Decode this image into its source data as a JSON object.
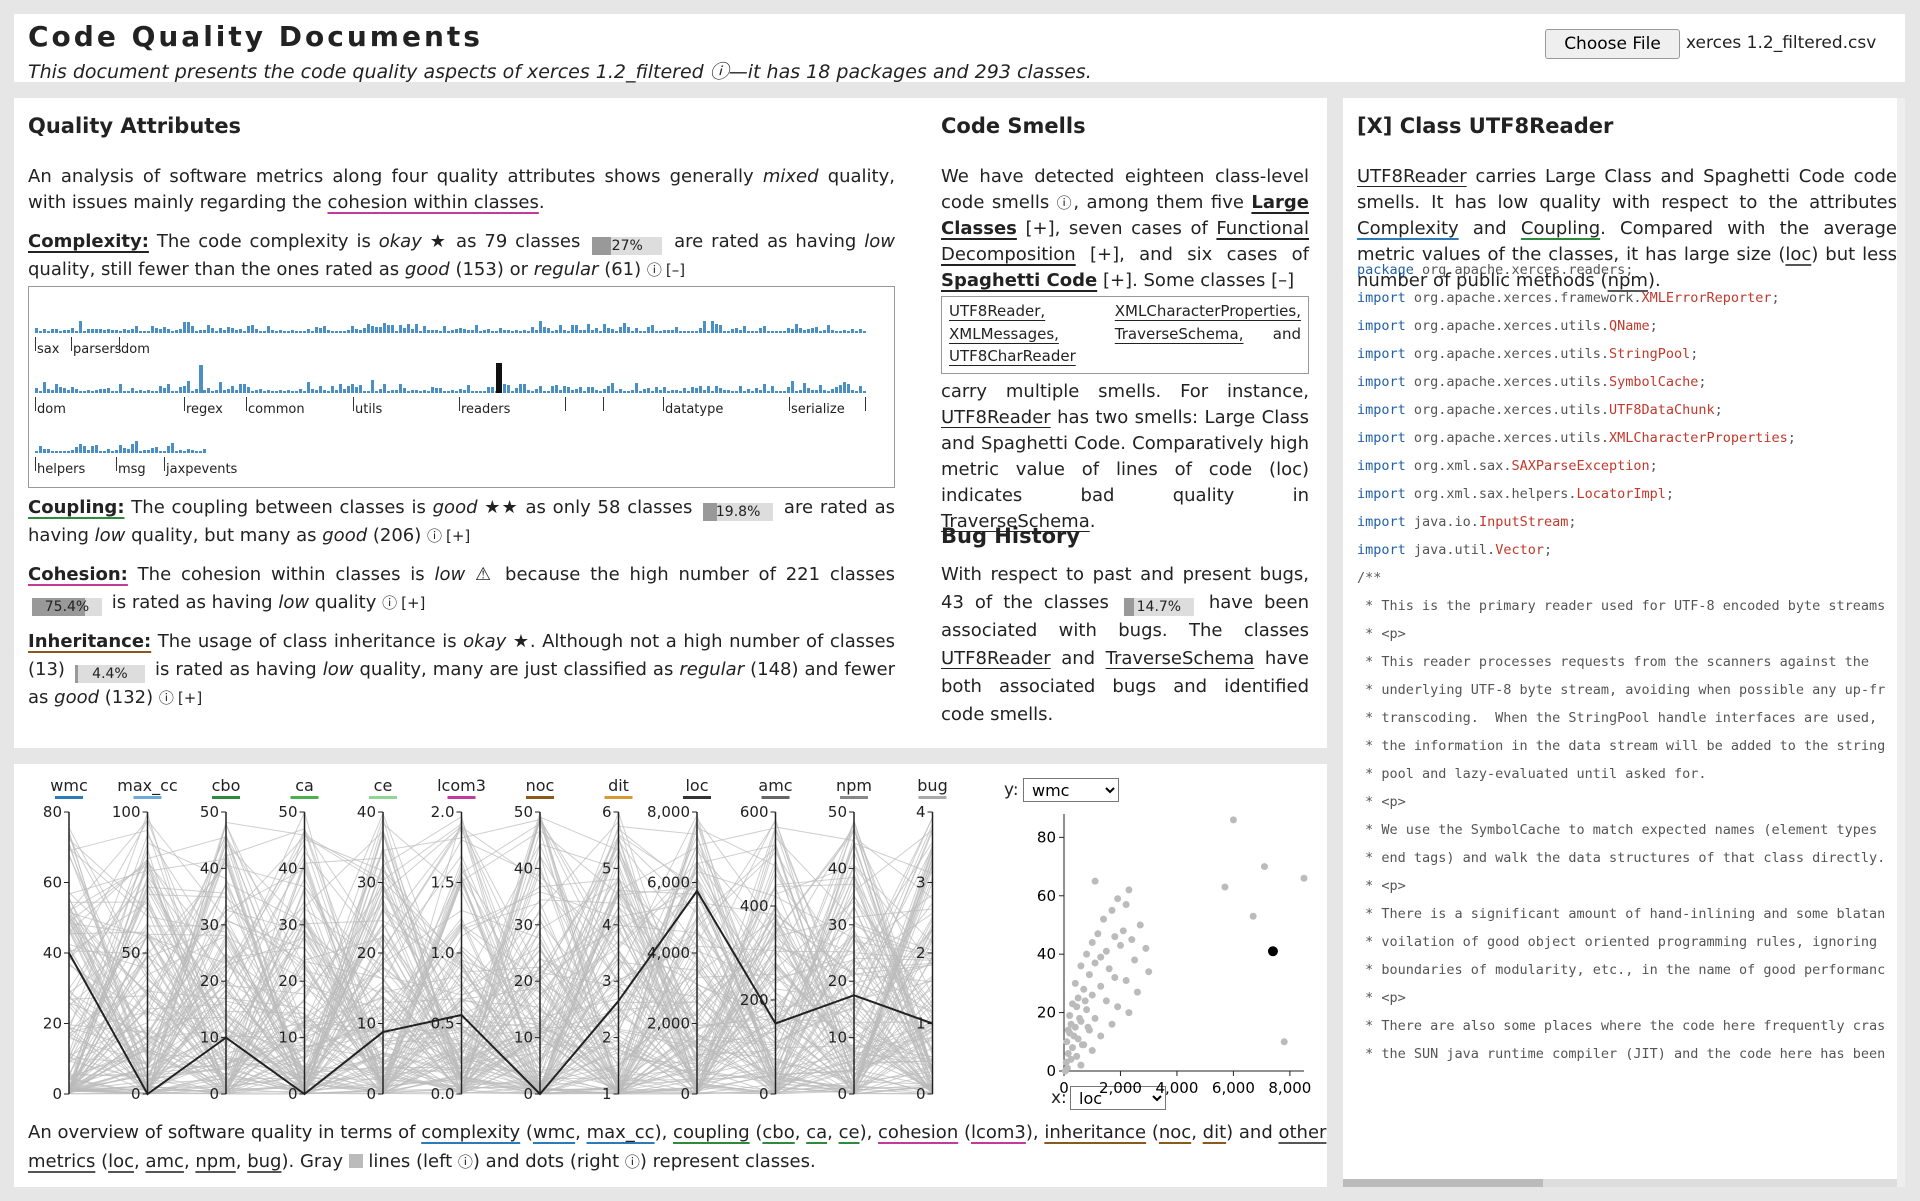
{
  "header": {
    "title": "Code Quality Documents",
    "subtitle": "This document presents the code quality aspects of xerces 1.2_filtered ⓘ—it has 18 packages and 293 classes.",
    "choose_file_label": "Choose File",
    "file_name": "xerces 1.2_filtered.csv"
  },
  "quality": {
    "heading": "Quality Attributes",
    "intro_pre": "An analysis of software metrics along four quality attributes shows generally ",
    "intro_em": "mixed",
    "intro_mid": " quality, with issues mainly regarding the ",
    "intro_link": "cohesion within classes",
    "intro_post": ".",
    "complexity": {
      "label": "Complexity:",
      "t1": " The code complexity is ",
      "rating": "okay",
      "stars": " ★",
      "t2": " as 79 classes ",
      "bar_text": "27%",
      "bar_value": 0.27,
      "t3": " are rated as having ",
      "em1": "low",
      "t4": " quality, still fewer than the ones rated as ",
      "em2": "good",
      "t5": " (153) or ",
      "em3": "regular",
      "t6": " (61) ",
      "info": "ⓘ",
      "toggle": "[–]"
    },
    "coupling": {
      "label": "Coupling:",
      "t1": " The coupling between classes is ",
      "rating": "good",
      "stars": " ★★",
      "t2": " as only 58 classes ",
      "bar_text": "19.8%",
      "bar_value": 0.198,
      "t3": " are rated as having ",
      "em1": "low",
      "t4": " quality, but many as ",
      "em2": "good",
      "t5": " (206) ",
      "info": "ⓘ",
      "toggle": "[+]"
    },
    "cohesion": {
      "label": "Cohesion:",
      "t1": " The cohesion within classes is ",
      "rating": "low",
      "stars": " ⚠",
      "t2": " because the high number of 221 classes ",
      "bar_text": "75.4%",
      "bar_value": 0.754,
      "t3": " is rated as having ",
      "em1": "low",
      "t4": " quality ",
      "info": "ⓘ",
      "toggle": "[+]"
    },
    "inheritance": {
      "label": "Inheritance:",
      "t1": " The usage of class inheritance is ",
      "rating": "okay",
      "stars": " ★",
      "t2": ". Although not a high number of classes (13) ",
      "bar_text": "4.4%",
      "bar_value": 0.044,
      "t3": " is rated as having ",
      "em1": "low",
      "t4": " quality, many are just classified as ",
      "em2": "regular",
      "t5": " (148) and fewer as ",
      "em3": "good",
      "t6": " (132) ",
      "info": "ⓘ",
      "toggle": "[+]"
    }
  },
  "histogram": {
    "rows": [
      {
        "labels": [
          "sax",
          "parsers",
          "dom"
        ]
      },
      {
        "labels": [
          "dom",
          "regex",
          "common",
          "utils",
          "readers",
          "",
          "",
          "datatype",
          "serialize"
        ]
      },
      {
        "labels": [
          "helpers",
          "msg",
          "jaxpevents"
        ]
      }
    ],
    "color": "#4a90c4",
    "highlight_color": "#111111"
  },
  "smells": {
    "heading": "Code Smells",
    "p1_a": "We have detected eighteen class-level code smells ",
    "p1_info": "ⓘ",
    "p1_b": ", among them five ",
    "large_class": "Large Classes",
    "p1_c": " [+], seven cases of ",
    "functional": "Functional Decomposition",
    "p1_d": " [+], and six cases of ",
    "spaghetti": "Spaghetti Code",
    "p1_e": " [+]. Some classes [–]",
    "box_items": [
      "UTF8Reader,",
      "XMLCharacterProperties,",
      "XMLMessages,",
      "TraverseSchema,",
      "UTF8CharReader",
      "and"
    ],
    "p2_a": "carry multiple smells. For instance, ",
    "p2_link1": "UTF8Reader",
    "p2_b": " has two smells: Large Class and Spaghetti Code. Comparatively high metric value of lines of code (loc) indicates bad quality in ",
    "p2_link2": "TraverseSchema",
    "p2_c": "."
  },
  "bugs": {
    "heading": "Bug History",
    "t1": "With respect to past and present bugs, 43 of the classes ",
    "bar_text": "14.7%",
    "bar_value": 0.147,
    "t2": " have been associated with bugs. The classes ",
    "link1": "UTF8Reader",
    "t3": " and ",
    "link2": "TraverseSchema",
    "t4": " have both associated bugs and identified code smells."
  },
  "class_panel": {
    "heading": "[X] Class UTF8Reader",
    "link_class": "UTF8Reader",
    "t1": " carries Large Class and Spaghetti Code code smells. It has low quality with respect to the attributes ",
    "link_complexity": "Complexity",
    "t2": " and ",
    "link_coupling": "Coupling",
    "t3": ". Compared with the average metric values of the classes, it has large size (",
    "loc": "loc",
    "t4": ") but less number of public methods (",
    "npm": "npm",
    "t5": ").",
    "code_lines": [
      {
        "kw": "package",
        "rest": " org.apache.xerces.readers;",
        "cls": "",
        "end": ""
      },
      {
        "kw": "",
        "rest": "",
        "cls": "",
        "end": ""
      },
      {
        "kw": "import",
        "rest": " org.apache.xerces.framework.",
        "cls": "XMLErrorReporter",
        "end": ";"
      },
      {
        "kw": "import",
        "rest": " org.apache.xerces.utils.",
        "cls": "QName",
        "end": ";"
      },
      {
        "kw": "import",
        "rest": " org.apache.xerces.utils.",
        "cls": "StringPool",
        "end": ";"
      },
      {
        "kw": "import",
        "rest": " org.apache.xerces.utils.",
        "cls": "SymbolCache",
        "end": ";"
      },
      {
        "kw": "import",
        "rest": " org.apache.xerces.utils.",
        "cls": "UTF8DataChunk",
        "end": ";"
      },
      {
        "kw": "import",
        "rest": " org.apache.xerces.utils.",
        "cls": "XMLCharacterProperties",
        "end": ";"
      },
      {
        "kw": "import",
        "rest": " org.xml.sax.",
        "cls": "SAXParseException",
        "end": ";"
      },
      {
        "kw": "import",
        "rest": " org.xml.sax.helpers.",
        "cls": "LocatorImpl",
        "end": ";"
      },
      {
        "kw": "import",
        "rest": " java.io.",
        "cls": "InputStream",
        "end": ";"
      },
      {
        "kw": "import",
        "rest": " java.util.",
        "cls": "Vector",
        "end": ";"
      },
      {
        "kw": "",
        "rest": "",
        "cls": "",
        "end": ""
      },
      {
        "kw": "",
        "rest": "/**",
        "cls": "",
        "end": ""
      },
      {
        "kw": "",
        "rest": " * This is the primary reader used for UTF-8 encoded byte streams",
        "cls": "",
        "end": ""
      },
      {
        "kw": "",
        "rest": " * <p>",
        "cls": "",
        "end": ""
      },
      {
        "kw": "",
        "rest": " * This reader processes requests from the scanners against the",
        "cls": "",
        "end": ""
      },
      {
        "kw": "",
        "rest": " * underlying UTF-8 byte stream, avoiding when possible any up-fr",
        "cls": "",
        "end": ""
      },
      {
        "kw": "",
        "rest": " * transcoding.  When the StringPool handle interfaces are used,",
        "cls": "",
        "end": ""
      },
      {
        "kw": "",
        "rest": " * the information in the data stream will be added to the string",
        "cls": "",
        "end": ""
      },
      {
        "kw": "",
        "rest": " * pool and lazy-evaluated until asked for.",
        "cls": "",
        "end": ""
      },
      {
        "kw": "",
        "rest": " * <p>",
        "cls": "",
        "end": ""
      },
      {
        "kw": "",
        "rest": " * We use the SymbolCache to match expected names (element types",
        "cls": "",
        "end": ""
      },
      {
        "kw": "",
        "rest": " * end tags) and walk the data structures of that class directly.",
        "cls": "",
        "end": ""
      },
      {
        "kw": "",
        "rest": " * <p>",
        "cls": "",
        "end": ""
      },
      {
        "kw": "",
        "rest": " * There is a significant amount of hand-inlining and some blatan",
        "cls": "",
        "end": ""
      },
      {
        "kw": "",
        "rest": " * voilation of good object oriented programming rules, ignoring",
        "cls": "",
        "end": ""
      },
      {
        "kw": "",
        "rest": " * boundaries of modularity, etc., in the name of good performanc",
        "cls": "",
        "end": ""
      },
      {
        "kw": "",
        "rest": " * <p>",
        "cls": "",
        "end": ""
      },
      {
        "kw": "",
        "rest": " * There are also some places where the code here frequently cras",
        "cls": "",
        "end": ""
      },
      {
        "kw": "",
        "rest": " * the SUN java runtime compiler (JIT) and the code here has been",
        "cls": "",
        "end": ""
      }
    ]
  },
  "parallel": {
    "axes": [
      {
        "name": "wmc",
        "color": "#2b7bb9",
        "ticks": [
          "80",
          "60",
          "40",
          "20",
          "0"
        ]
      },
      {
        "name": "max_cc",
        "color": "#6fa8dc",
        "ticks": [
          "100",
          "50",
          "0"
        ]
      },
      {
        "name": "cbo",
        "color": "#2e8b3e",
        "ticks": [
          "50",
          "40",
          "30",
          "20",
          "10",
          "0"
        ]
      },
      {
        "name": "ca",
        "color": "#4caf50",
        "ticks": [
          "50",
          "40",
          "30",
          "20",
          "10",
          "0"
        ]
      },
      {
        "name": "ce",
        "color": "#8fd694",
        "ticks": [
          "40",
          "30",
          "20",
          "10",
          "0"
        ]
      },
      {
        "name": "lcom3",
        "color": "#c03b9a",
        "ticks": [
          "2.0",
          "1.5",
          "1.0",
          "0.5",
          "0.0"
        ]
      },
      {
        "name": "noc",
        "color": "#8a5a1c",
        "ticks": [
          "50",
          "40",
          "30",
          "20",
          "10",
          "0"
        ]
      },
      {
        "name": "dit",
        "color": "#d69a3a",
        "ticks": [
          "6",
          "5",
          "4",
          "3",
          "2",
          "1"
        ]
      },
      {
        "name": "loc",
        "color": "#333333",
        "ticks": [
          "8,000",
          "6,000",
          "4,000",
          "2,000",
          "0"
        ]
      },
      {
        "name": "amc",
        "color": "#666666",
        "ticks": [
          "600",
          "400",
          "200",
          "0"
        ]
      },
      {
        "name": "npm",
        "color": "#888888",
        "ticks": [
          "50",
          "40",
          "30",
          "20",
          "10",
          "0"
        ]
      },
      {
        "name": "bug",
        "color": "#aaaaaa",
        "ticks": [
          "4",
          "3",
          "2",
          "1",
          "0"
        ]
      }
    ]
  },
  "scatter": {
    "y_label": "y:",
    "x_label": "x:",
    "y_select": "wmc",
    "x_select": "loc",
    "y_ticks": [
      "80",
      "60",
      "40",
      "20",
      "0"
    ],
    "x_ticks": [
      "0",
      "2,000",
      "4,000",
      "6,000",
      "8,000"
    ]
  },
  "chart_data": {
    "type": "scatter",
    "title": "",
    "xlabel": "loc",
    "ylabel": "wmc",
    "xlim": [
      0,
      8500
    ],
    "ylim": [
      0,
      88
    ],
    "highlighted": {
      "x": 7400,
      "y": 41
    },
    "points": [
      [
        6000,
        86
      ],
      [
        7100,
        70
      ],
      [
        8700,
        66
      ],
      [
        5700,
        63
      ],
      [
        6700,
        53
      ],
      [
        7800,
        10
      ],
      [
        1100,
        65
      ],
      [
        2300,
        62
      ],
      [
        1900,
        59
      ],
      [
        2200,
        57
      ],
      [
        1700,
        55
      ],
      [
        1400,
        52
      ],
      [
        2700,
        50
      ],
      [
        2100,
        48
      ],
      [
        1200,
        47
      ],
      [
        1800,
        46
      ],
      [
        2400,
        45
      ],
      [
        1000,
        44
      ],
      [
        2000,
        43
      ],
      [
        2900,
        42
      ],
      [
        1500,
        41
      ],
      [
        800,
        40
      ],
      [
        1300,
        39
      ],
      [
        2500,
        38
      ],
      [
        1100,
        37
      ],
      [
        600,
        36
      ],
      [
        1600,
        35
      ],
      [
        3000,
        34
      ],
      [
        900,
        33
      ],
      [
        1800,
        32
      ],
      [
        2200,
        31
      ],
      [
        400,
        30
      ],
      [
        1300,
        29
      ],
      [
        700,
        28
      ],
      [
        2600,
        27
      ],
      [
        1000,
        26
      ],
      [
        500,
        25
      ],
      [
        1500,
        24
      ],
      [
        300,
        23
      ],
      [
        1900,
        22
      ],
      [
        800,
        21
      ],
      [
        2300,
        20
      ],
      [
        200,
        19
      ],
      [
        1100,
        18
      ],
      [
        600,
        17
      ],
      [
        1700,
        16
      ],
      [
        400,
        15
      ],
      [
        900,
        14
      ],
      [
        200,
        13
      ],
      [
        1300,
        12
      ],
      [
        500,
        11
      ],
      [
        100,
        10
      ],
      [
        700,
        9
      ],
      [
        300,
        8
      ],
      [
        1000,
        7
      ],
      [
        150,
        6
      ],
      [
        450,
        5
      ],
      [
        250,
        4
      ],
      [
        80,
        3
      ],
      [
        600,
        2
      ],
      [
        120,
        1
      ],
      [
        50,
        0
      ],
      [
        350,
        12
      ],
      [
        550,
        18
      ],
      [
        750,
        24
      ],
      [
        250,
        16
      ],
      [
        450,
        22
      ],
      [
        150,
        14
      ],
      [
        650,
        9
      ],
      [
        850,
        15
      ]
    ]
  },
  "bottom_caption": {
    "t1": "An overview of software quality in terms of ",
    "complexity": "complexity",
    "t2": " (",
    "wmc": "wmc",
    "c1": ", ",
    "max_cc": "max_cc",
    "t3": "), ",
    "coupling": "coupling",
    "t4": " (",
    "cbo": "cbo",
    "c2": ", ",
    "ca": "ca",
    "c3": ", ",
    "ce": "ce",
    "t5": "), ",
    "cohesion": "cohesion",
    "t6": " (",
    "lcom3": "lcom3",
    "t7": "), ",
    "inheritance": "inheritance",
    "t8": " (",
    "noc": "noc",
    "c4": ", ",
    "dit": "dit",
    "t9": ") and ",
    "other": "other metrics",
    "t10": " (",
    "loc": "loc",
    "c5": ", ",
    "amc": "amc",
    "c6": ", ",
    "npm": "npm",
    "c7": ", ",
    "bug": "bug",
    "t11": "). Gray ",
    "t12": " lines (left ",
    "info1": "ⓘ",
    "t13": ") and dots (right ",
    "info2": "ⓘ",
    "t14": ") represent classes."
  }
}
